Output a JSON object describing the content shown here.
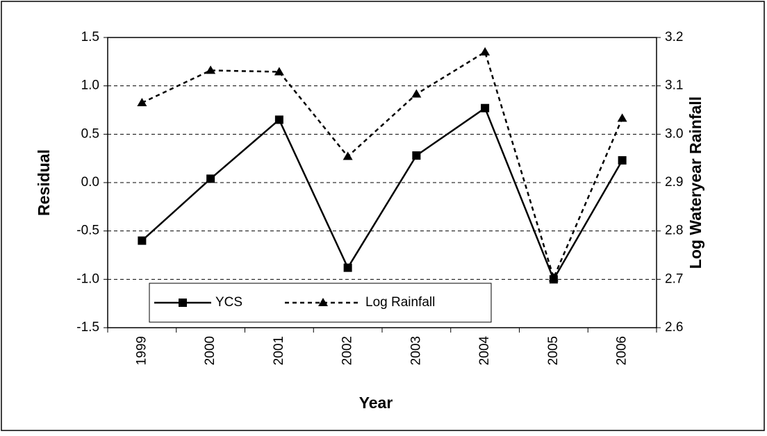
{
  "chart_data": {
    "type": "line",
    "x_label": "Year",
    "y_label": "Residual",
    "y2_label": "Log Wateryear Rainfall",
    "categories": [
      "1999",
      "2000",
      "2001",
      "2002",
      "2003",
      "2004",
      "2005",
      "2006"
    ],
    "series": [
      {
        "name": "YCS",
        "color": "#000000",
        "marker": "square",
        "dash": false,
        "values": [
          -0.6,
          0.04,
          0.65,
          -0.88,
          0.28,
          0.77,
          -1.0,
          0.23
        ]
      },
      {
        "name": "Log Rainfall",
        "color": "#000000",
        "marker": "triangle",
        "dash": true,
        "axis": "y2",
        "values": [
          3.065,
          3.132,
          3.129,
          2.954,
          3.083,
          3.17,
          2.703,
          3.033
        ]
      }
    ],
    "ylim": [
      -1.5,
      1.5
    ],
    "yticks": [
      -1.5,
      {
        "value": -1,
        "label": "-1.0"
      },
      -0.5,
      {
        "value": 0,
        "label": "0.0"
      },
      0.5,
      {
        "value": 1,
        "label": "1.0"
      },
      1.5
    ],
    "y2lim": [
      2.6,
      3.2
    ],
    "y2ticks": [
      2.6,
      2.7,
      2.8,
      2.9,
      {
        "value": 3,
        "label": "3.0"
      },
      3.1,
      3.2
    ],
    "grid": true,
    "legend": "bottom-left"
  }
}
